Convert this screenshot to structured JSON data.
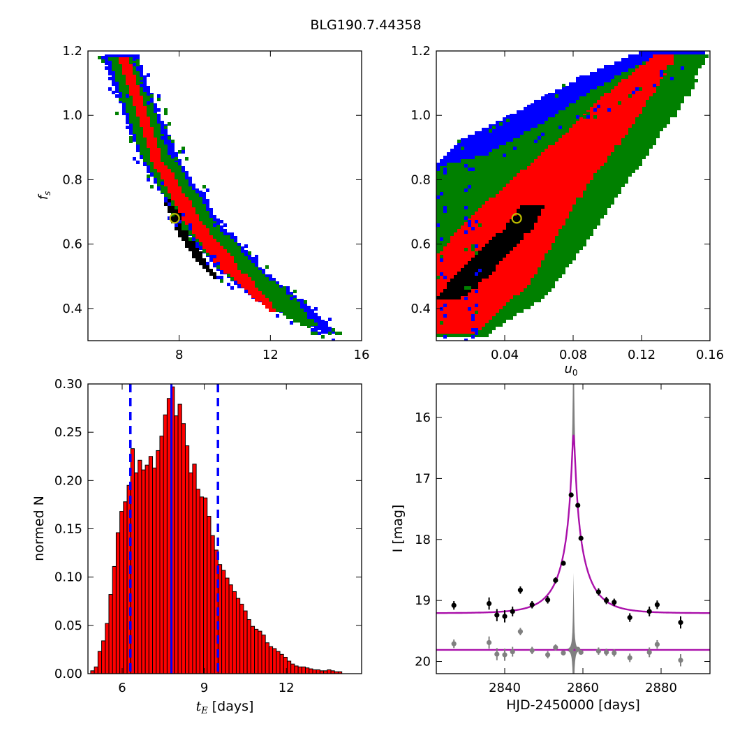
{
  "title": "BLG190.7.44358",
  "chart_data": [
    {
      "type": "heatmap",
      "ylabel": "f_s",
      "xlim": [
        4,
        16
      ],
      "ylim": [
        0.3,
        1.2
      ],
      "xticks": [
        8,
        12,
        16
      ],
      "yticks": [
        0.4,
        0.6,
        0.8,
        1.0,
        1.2
      ],
      "best_fit": {
        "x": 7.8,
        "y": 0.68
      },
      "bands": [
        {
          "color": "#0000ff",
          "lower": {
            "x": [
              4.65,
              6.2,
              8.0,
              9.7,
              11.3,
              14.2
            ],
            "y": [
              1.19,
              0.88,
              0.66,
              0.52,
              0.43,
              0.33
            ]
          },
          "upper": {
            "x": [
              6.1,
              8.0,
              9.9,
              11.7,
              13.7,
              14.8
            ],
            "y": [
              1.19,
              0.86,
              0.66,
              0.52,
              0.41,
              0.33
            ]
          }
        },
        {
          "color": "#008000",
          "lower": {
            "x": [
              4.9,
              6.4,
              8.0,
              9.8,
              11.4,
              13.3
            ],
            "y": [
              1.18,
              0.87,
              0.67,
              0.52,
              0.43,
              0.35
            ]
          },
          "upper": {
            "x": [
              5.95,
              7.7,
              9.7,
              11.5,
              13.2,
              14.0
            ],
            "y": [
              1.18,
              0.87,
              0.66,
              0.52,
              0.42,
              0.35
            ]
          }
        },
        {
          "color": "#ff0000",
          "lower": {
            "x": [
              5.35,
              6.8,
              8.1,
              9.6,
              11.0,
              12.0
            ],
            "y": [
              1.18,
              0.86,
              0.68,
              0.54,
              0.45,
              0.39
            ]
          },
          "upper": {
            "x": [
              5.75,
              7.3,
              9.0,
              10.7,
              11.9,
              12.2
            ],
            "y": [
              1.18,
              0.86,
              0.67,
              0.52,
              0.43,
              0.39
            ]
          }
        },
        {
          "color": "#000000",
          "lower": {
            "x": [
              7.3,
              7.8,
              8.6,
              9.6
            ],
            "y": [
              0.74,
              0.65,
              0.56,
              0.49
            ]
          },
          "upper": {
            "x": [
              7.6,
              8.3,
              9.1,
              9.8
            ],
            "y": [
              0.74,
              0.65,
              0.56,
              0.49
            ]
          }
        }
      ]
    },
    {
      "type": "heatmap",
      "xlabel": "u_0",
      "xlim": [
        0.0,
        0.16
      ],
      "ylim": [
        0.3,
        1.2
      ],
      "xticks": [
        0.04,
        0.08,
        0.12,
        0.16
      ],
      "yticks": [
        0.4,
        0.6,
        0.8,
        1.0,
        1.2
      ],
      "best_fit": {
        "x": 0.047,
        "y": 0.68
      },
      "bands": [
        {
          "color": "#0000ff",
          "lower": {
            "x": [
              0.0,
              0.016,
              0.05,
              0.085,
              0.12
            ],
            "y": [
              0.85,
              0.93,
              1.02,
              1.12,
              1.2
            ]
          },
          "upper": {
            "x": [
              0.02,
              0.06,
              0.095,
              0.13,
              0.158
            ],
            "y": [
              0.85,
              0.93,
              1.02,
              1.12,
              1.2
            ]
          }
        },
        {
          "color": "#008000",
          "lower": {
            "x": [
              0.0,
              0.0,
              0.0,
              0.0,
              0.03,
              0.06,
              0.095,
              0.13
            ],
            "y": [
              0.32,
              0.46,
              0.64,
              0.84,
              0.88,
              0.97,
              1.09,
              1.19
            ]
          },
          "upper": {
            "x": [
              0.03,
              0.065,
              0.09,
              0.11,
              0.13,
              0.15,
              0.158
            ],
            "y": [
              0.32,
              0.44,
              0.62,
              0.78,
              0.93,
              1.08,
              1.19
            ]
          }
        },
        {
          "color": "#ff0000",
          "lower": {
            "x": [
              0.0,
              0.0,
              0.015,
              0.04,
              0.07,
              0.1,
              0.128
            ],
            "y": [
              0.33,
              0.56,
              0.66,
              0.78,
              0.92,
              1.07,
              1.19
            ]
          },
          "upper": {
            "x": [
              0.024,
              0.055,
              0.07,
              0.085,
              0.105,
              0.125,
              0.14
            ],
            "y": [
              0.33,
              0.48,
              0.62,
              0.76,
              0.9,
              1.05,
              1.19
            ]
          }
        },
        {
          "color": "#000000",
          "lower": {
            "x": [
              0.0,
              0.01,
              0.024,
              0.04,
              0.05
            ],
            "y": [
              0.43,
              0.5,
              0.57,
              0.65,
              0.72
            ]
          },
          "upper": {
            "x": [
              0.015,
              0.03,
              0.042,
              0.057,
              0.063
            ],
            "y": [
              0.43,
              0.5,
              0.57,
              0.65,
              0.72
            ]
          }
        }
      ]
    },
    {
      "type": "bar",
      "xlabel": "t_E [days]",
      "ylabel": "normed N",
      "xlim": [
        4.75,
        14.75
      ],
      "ylim": [
        0.0,
        0.3
      ],
      "xticks": [
        6,
        9,
        12
      ],
      "yticks": [
        0.0,
        0.05,
        0.1,
        0.15,
        0.2,
        0.25,
        0.3
      ],
      "bin_width": 0.133,
      "bins": [
        4.85,
        4.983,
        5.116,
        5.249,
        5.382,
        5.515,
        5.648,
        5.781,
        5.914,
        6.047,
        6.18,
        6.313,
        6.446,
        6.579,
        6.712,
        6.845,
        6.978,
        7.111,
        7.244,
        7.377,
        7.51,
        7.643,
        7.776,
        7.909,
        8.042,
        8.175,
        8.308,
        8.441,
        8.574,
        8.707,
        8.84,
        8.973,
        9.106,
        9.239,
        9.372,
        9.505,
        9.638,
        9.771,
        9.904,
        10.037,
        10.17,
        10.303,
        10.436,
        10.569,
        10.702,
        10.835,
        10.968,
        11.101,
        11.234,
        11.367,
        11.5,
        11.633,
        11.766,
        11.899,
        12.032,
        12.165,
        12.298,
        12.431,
        12.564,
        12.697,
        12.83,
        12.963,
        13.096,
        13.229,
        13.362,
        13.495,
        13.628,
        13.761,
        13.894
      ],
      "values": [
        0.003,
        0.007,
        0.023,
        0.034,
        0.052,
        0.082,
        0.111,
        0.146,
        0.168,
        0.178,
        0.195,
        0.233,
        0.208,
        0.221,
        0.211,
        0.216,
        0.225,
        0.213,
        0.231,
        0.246,
        0.268,
        0.285,
        0.297,
        0.267,
        0.279,
        0.259,
        0.236,
        0.208,
        0.217,
        0.191,
        0.183,
        0.182,
        0.163,
        0.143,
        0.128,
        0.113,
        0.107,
        0.099,
        0.092,
        0.085,
        0.078,
        0.072,
        0.065,
        0.056,
        0.049,
        0.046,
        0.044,
        0.04,
        0.032,
        0.028,
        0.026,
        0.023,
        0.02,
        0.017,
        0.013,
        0.01,
        0.008,
        0.007,
        0.007,
        0.006,
        0.005,
        0.004,
        0.004,
        0.003,
        0.003,
        0.004,
        0.003,
        0.002,
        0.002
      ],
      "bar_color": "#ff0000",
      "median": 7.8,
      "interval": [
        6.3,
        9.5
      ],
      "line_color": "#0000ff"
    },
    {
      "type": "scatter",
      "xlabel": "HJD-2450000 [days]",
      "ylabel": "I [mag]",
      "xlim": [
        2822.5,
        2892.5
      ],
      "ylim": [
        20.2,
        15.45
      ],
      "xticks": [
        2840,
        2860,
        2880
      ],
      "yticks": [
        16,
        17,
        18,
        19,
        20
      ],
      "points": {
        "x": [
          2827,
          2836,
          2838,
          2840,
          2842,
          2844,
          2847,
          2851,
          2853,
          2855,
          2857,
          2858.7,
          2859.5,
          2864,
          2866,
          2868,
          2872,
          2877,
          2879,
          2885
        ],
        "y": [
          19.08,
          19.05,
          19.24,
          19.26,
          19.18,
          18.83,
          19.07,
          18.99,
          18.67,
          18.39,
          17.27,
          17.44,
          17.98,
          18.86,
          19.0,
          19.03,
          19.28,
          19.18,
          19.07,
          19.36
        ],
        "err": [
          0.07,
          0.1,
          0.1,
          0.1,
          0.08,
          0.06,
          0.06,
          0.06,
          0.05,
          0.04,
          0.03,
          0.03,
          0.03,
          0.06,
          0.06,
          0.06,
          0.07,
          0.08,
          0.07,
          0.1
        ]
      },
      "residuals": {
        "x": [
          2827,
          2836,
          2838,
          2840,
          2842,
          2844,
          2847,
          2851,
          2853,
          2855,
          2857,
          2858.7,
          2859.5,
          2864,
          2866,
          2868,
          2872,
          2877,
          2879,
          2885
        ],
        "y": [
          19.71,
          19.69,
          19.88,
          19.89,
          19.84,
          19.51,
          19.82,
          19.89,
          19.77,
          19.86,
          19.8,
          19.8,
          19.85,
          19.83,
          19.85,
          19.86,
          19.94,
          19.85,
          19.72,
          19.98
        ],
        "err": [
          0.07,
          0.1,
          0.1,
          0.1,
          0.08,
          0.06,
          0.06,
          0.06,
          0.05,
          0.04,
          0.03,
          0.03,
          0.03,
          0.06,
          0.06,
          0.06,
          0.07,
          0.08,
          0.07,
          0.1
        ]
      },
      "model": {
        "t0": 2857.6,
        "baseline": 19.21,
        "u0": 0.047,
        "tE": 7.8,
        "fs": 0.68,
        "residual_level": 19.81
      },
      "model_color": "#aa10aa",
      "band_color": "#808080",
      "point_color": "#000000",
      "residual_color": "#808080"
    }
  ]
}
